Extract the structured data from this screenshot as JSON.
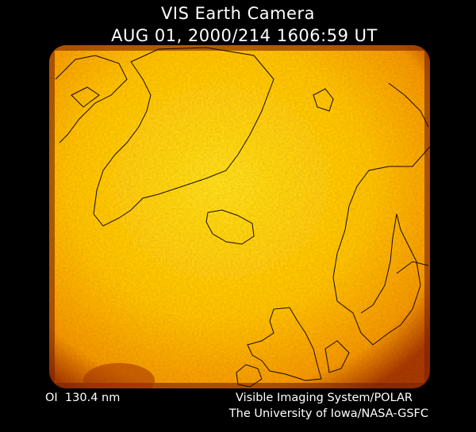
{
  "header": {
    "title": "VIS Earth Camera",
    "timestamp": "AUG 01, 2000/214 1606:59 UT"
  },
  "footer": {
    "wavelength": "OI  130.4 nm",
    "instrument": "Visible Imaging System/POLAR",
    "credit": "The University of Iowa/NASA-GSFC"
  }
}
